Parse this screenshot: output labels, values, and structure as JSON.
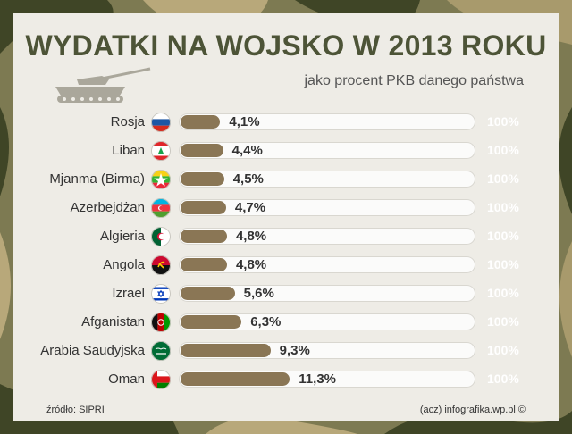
{
  "title": "WYDATKI NA WOJSKO W 2013 ROKU",
  "subtitle": "jako procent PKB danego państwa",
  "max_label": "100%",
  "source": "źródło: SIPRI",
  "credit": "(acz) infografika.wp.pl ©",
  "colors": {
    "bar": "#8a7655",
    "title": "#4d5437",
    "panel": "#eeece6"
  },
  "chart_data": {
    "type": "bar",
    "orientation": "horizontal",
    "title": "WYDATKI NA WOJSKO W 2013 ROKU",
    "subtitle": "jako procent PKB danego państwa",
    "categories": [
      "Rosja",
      "Liban",
      "Mjanma (Birma)",
      "Azerbejdżan",
      "Algieria",
      "Angola",
      "Izrael",
      "Afganistan",
      "Arabia Saudyjska",
      "Oman"
    ],
    "values": [
      4.1,
      4.4,
      4.5,
      4.7,
      4.8,
      4.8,
      5.6,
      6.3,
      9.3,
      11.3
    ],
    "value_labels": [
      "4,1%",
      "4,4%",
      "4,5%",
      "4,7%",
      "4,8%",
      "4,8%",
      "5,6%",
      "6,3%",
      "9,3%",
      "11,3%"
    ],
    "xlim": [
      0,
      100
    ],
    "flags": [
      "russia-flag-icon",
      "lebanon-flag-icon",
      "myanmar-flag-icon",
      "azerbaijan-flag-icon",
      "algeria-flag-icon",
      "angola-flag-icon",
      "israel-flag-icon",
      "afghanistan-flag-icon",
      "saudi-arabia-flag-icon",
      "oman-flag-icon"
    ]
  }
}
